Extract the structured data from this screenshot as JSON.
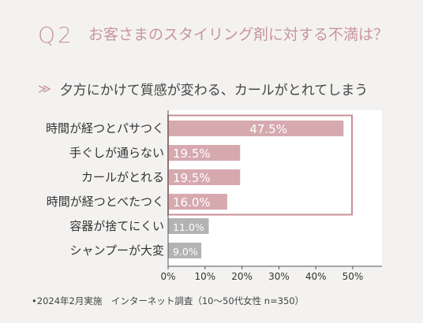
{
  "header": {
    "q_number": "Q2",
    "question": "お客さまのスタイリング剤に対する不満は？"
  },
  "answer": {
    "chevron": "≫",
    "text": "夕方にかけて質感が変わる、カールがとれてしまう"
  },
  "chart_data": {
    "type": "bar",
    "orientation": "horizontal",
    "categories": [
      "時間が経つとパサつく",
      "手ぐしが通らない",
      "カールがとれる",
      "時間が経つとべたつく",
      "容器が捨てにくい",
      "シャンプーが大変"
    ],
    "values": [
      47.5,
      19.5,
      19.5,
      16.0,
      11.0,
      9.0
    ],
    "value_labels": [
      "47.5%",
      "19.5%",
      "19.5%",
      "16.0%",
      "11.0%",
      "9.0%"
    ],
    "x_ticks": [
      "0%",
      "10%",
      "20%",
      "30%",
      "40%",
      "50%"
    ],
    "xlim": [
      0,
      50
    ],
    "grid": false,
    "highlighted_count": 4,
    "colors": {
      "highlight": "#d6a9ae",
      "normal": "#b3b3b3",
      "frame": "#c98e97",
      "axis": "#555555",
      "plot_bg": "#ffffff"
    }
  },
  "footnote": "•2024年2月実施　インターネット調査（10〜50代女性 n=350）"
}
